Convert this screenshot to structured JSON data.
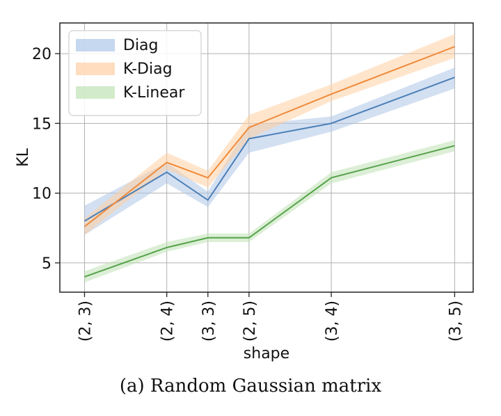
{
  "chart_data": {
    "type": "line",
    "xlabel": "shape",
    "ylabel": "KL",
    "categories": [
      "(2, 3)",
      "(2, 4)",
      "(3, 3)",
      "(2, 5)",
      "(3, 4)",
      "(3, 5)"
    ],
    "x": [
      0,
      2,
      3,
      4,
      6,
      9
    ],
    "ylim": [
      2.9,
      22.2
    ],
    "yticks": [
      5,
      10,
      15,
      20
    ],
    "grid": true,
    "legend_position": "top-left",
    "series": [
      {
        "name": "Diag",
        "color": "#4c7fb6",
        "band_color": "#aec7e8",
        "values": [
          8.0,
          11.5,
          9.5,
          13.9,
          15.0,
          18.3
        ],
        "lower": [
          7.0,
          10.7,
          9.0,
          12.9,
          14.4,
          17.5
        ],
        "upper": [
          9.1,
          12.2,
          10.1,
          14.9,
          15.5,
          19.0
        ]
      },
      {
        "name": "K-Diag",
        "color": "#ee8b3c",
        "band_color": "#ffcfa3",
        "values": [
          7.6,
          12.2,
          11.1,
          14.7,
          17.1,
          20.5
        ],
        "lower": [
          7.0,
          11.7,
          10.4,
          13.9,
          16.6,
          19.7
        ],
        "upper": [
          8.2,
          12.9,
          11.6,
          15.6,
          17.8,
          21.4
        ]
      },
      {
        "name": "K-Linear",
        "color": "#55a24a",
        "band_color": "#bfe2b5",
        "values": [
          4.0,
          6.1,
          6.8,
          6.8,
          11.1,
          13.4
        ],
        "lower": [
          3.6,
          5.8,
          6.5,
          6.5,
          10.7,
          13.0
        ],
        "upper": [
          4.4,
          6.5,
          7.1,
          7.1,
          11.5,
          13.8
        ]
      }
    ]
  },
  "caption": "(a) Random Gaussian matrix"
}
